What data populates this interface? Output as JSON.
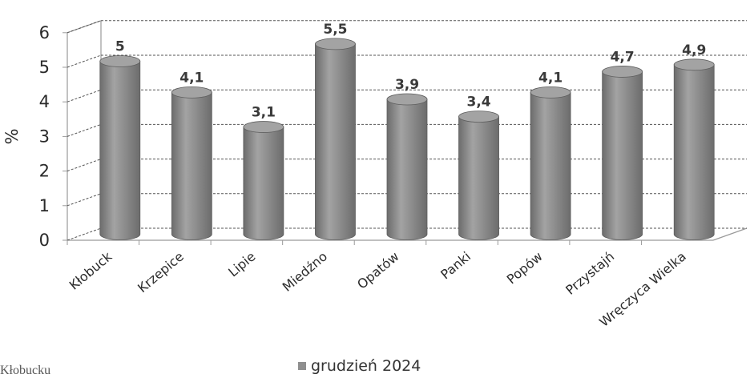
{
  "chart_data": {
    "type": "bar",
    "style": "3d-cylinder",
    "categories": [
      "Kłobuck",
      "Krzepice",
      "Lipie",
      "Miedźno",
      "Opatów",
      "Panki",
      "Popów",
      "Przystajń",
      "Wręczyca Wielka"
    ],
    "series": [
      {
        "name": "grudzień 2024",
        "values": [
          5,
          4.1,
          3.1,
          5.5,
          3.9,
          3.4,
          4.1,
          4.7,
          4.9
        ]
      }
    ],
    "data_labels": [
      "5",
      "4,1",
      "3,1",
      "5,5",
      "3,9",
      "3,4",
      "4,1",
      "4,7",
      "4,9"
    ],
    "title": "",
    "xlabel": "",
    "ylabel": "%",
    "ylim": [
      0,
      6
    ],
    "yticks": [
      0,
      1,
      2,
      3,
      4,
      5,
      6
    ],
    "grid": true,
    "legend": "bottom",
    "colors": {
      "bar": "#8f8f8f",
      "bar_dark": "#6c6c6c",
      "bar_top": "#a3a3a3",
      "grid": "#555555",
      "frame": "#9a9a9a"
    }
  },
  "page_fragment_text": "Kłobucku"
}
